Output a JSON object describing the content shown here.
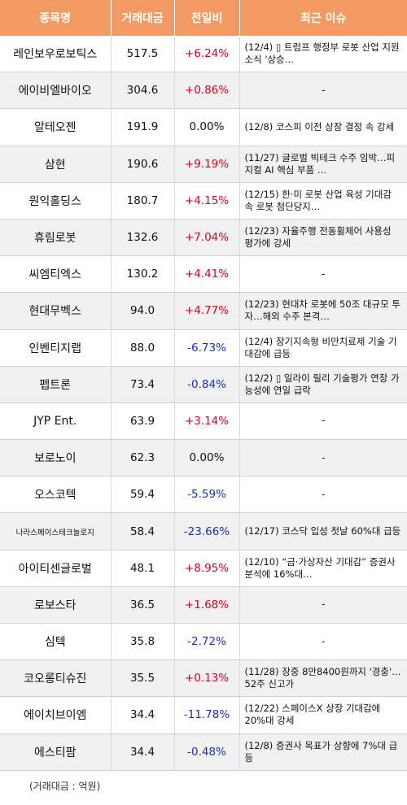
{
  "columns": [
    "종목명",
    "거래대금",
    "전일비",
    "최근 이슈"
  ],
  "rows": [
    {
      "name": "레인보우로보틱스",
      "volume": "517.5",
      "change": "+6.24%",
      "dir": "up",
      "issue": "(12/4) ▯ 트럼프 행정부 로봇 산업 지원 소식 '상승…"
    },
    {
      "name": "에이비엘바이오",
      "volume": "304.6",
      "change": "+0.86%",
      "dir": "up",
      "issue": "-"
    },
    {
      "name": "알테오젠",
      "volume": "191.9",
      "change": "0.00%",
      "dir": "flat",
      "issue": "(12/8) 코스피 이전 상장 결정 속 강세"
    },
    {
      "name": "삼현",
      "volume": "190.6",
      "change": "+9.19%",
      "dir": "up",
      "issue": "(11/27) 글로벌 빅테크 수주 임박…피지컬 AI 핵심 부품 …"
    },
    {
      "name": "원익홀딩스",
      "volume": "180.7",
      "change": "+4.15%",
      "dir": "up",
      "issue": "(12/15) 한·미 로봇 산업 육성 기대감 속 로봇 첨단당지…"
    },
    {
      "name": "휴림로봇",
      "volume": "132.6",
      "change": "+7.04%",
      "dir": "up",
      "issue": "(12/23) 자율주행 전동휠체어 사용성 평가에 강세"
    },
    {
      "name": "씨엠티엑스",
      "volume": "130.2",
      "change": "+4.41%",
      "dir": "up",
      "issue": "-"
    },
    {
      "name": "현대무벡스",
      "volume": "94.0",
      "change": "+4.77%",
      "dir": "up",
      "issue": "(12/23) 현대차 로봇에 50조 대규모 투자…해외 수주 본격…"
    },
    {
      "name": "인벤티지랩",
      "volume": "88.0",
      "change": "-6.73%",
      "dir": "down",
      "issue": "(12/4) 장기지속형 비만치료제 기술 기대감에 급등"
    },
    {
      "name": "펩트론",
      "volume": "73.4",
      "change": "-0.84%",
      "dir": "down",
      "issue": "(12/2) ▯ 일라이 릴리 기술평가 연장 가능성에 연일 급락"
    },
    {
      "name": "JYP Ent.",
      "volume": "63.9",
      "change": "+3.14%",
      "dir": "up",
      "issue": "-"
    },
    {
      "name": "보로노이",
      "volume": "62.3",
      "change": "0.00%",
      "dir": "flat",
      "issue": "-"
    },
    {
      "name": "오스코텍",
      "volume": "59.4",
      "change": "-5.59%",
      "dir": "down",
      "issue": "-"
    },
    {
      "name": "나라스페이스테크놀로지",
      "volume": "58.4",
      "change": "-23.66%",
      "dir": "down",
      "issue": "(12/17) 코스닥 입성 첫날 60%대 급등",
      "small": true
    },
    {
      "name": "아이티센글로벌",
      "volume": "48.1",
      "change": "+8.95%",
      "dir": "up",
      "issue": "(12/10) “금·가상자산 기대감” 증권사 분석에 16%대…"
    },
    {
      "name": "로보스타",
      "volume": "36.5",
      "change": "+1.68%",
      "dir": "up",
      "issue": "-"
    },
    {
      "name": "심텍",
      "volume": "35.8",
      "change": "-2.72%",
      "dir": "down",
      "issue": "-"
    },
    {
      "name": "코오롱티슈진",
      "volume": "35.5",
      "change": "+0.13%",
      "dir": "up",
      "issue": "(11/28) 장중 8만8400원까지 '경충'…52주 신고가"
    },
    {
      "name": "에이치브이엠",
      "volume": "34.4",
      "change": "-11.78%",
      "dir": "down",
      "issue": "(12/22) 스페이스X 상장 기대감에 20%대 강세"
    },
    {
      "name": "에스티팜",
      "volume": "34.4",
      "change": "-0.48%",
      "dir": "down",
      "issue": "(12/8) 증권사 목표가 상향에 7%대 급등"
    }
  ],
  "footnote": "(거래대금 : 억원)",
  "colors": {
    "header_bg": "#f29a62",
    "up": "#e0001b",
    "down": "#1730c4",
    "stripe": "#f1f1f1"
  }
}
